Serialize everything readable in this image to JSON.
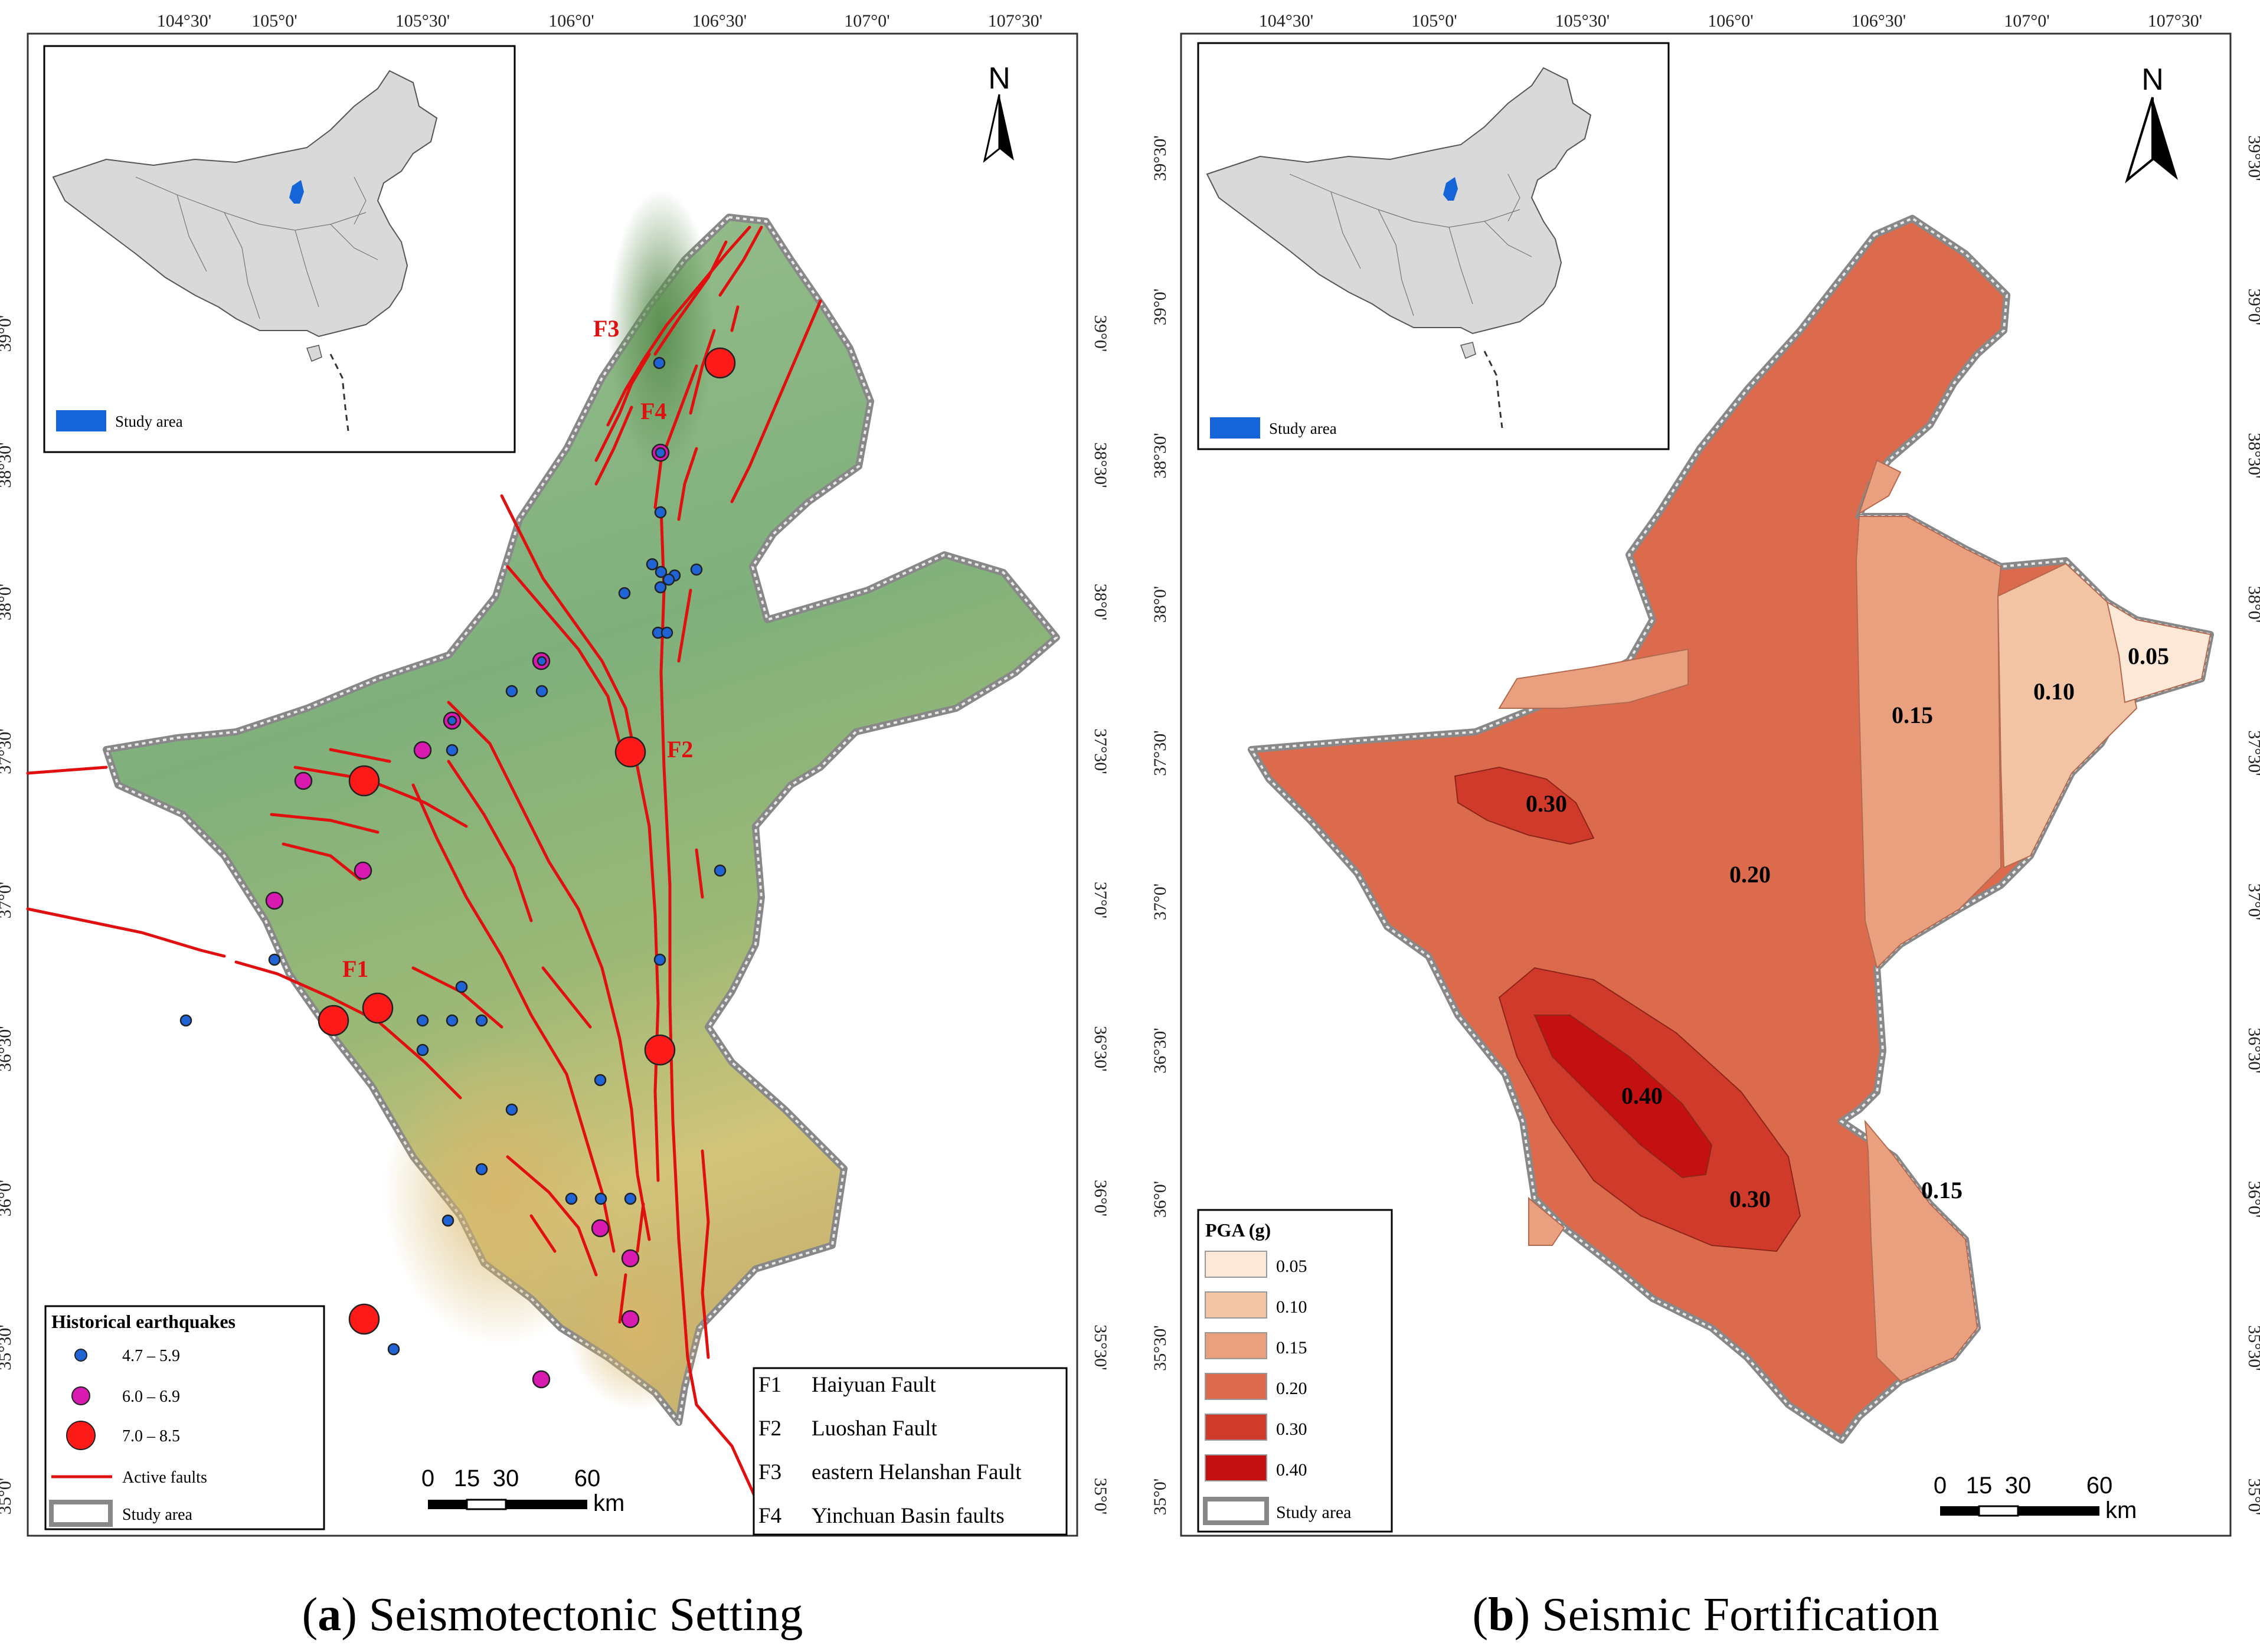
{
  "panel_a": {
    "caption_letter": "(a)",
    "caption_text": "Seismotectonic Setting",
    "top_ticks": [
      "104°30'",
      "105°0'",
      "105°30'",
      "106°0'",
      "106°30'",
      "107°0'",
      "107°30'"
    ],
    "side_ticks": [
      "39°0'",
      "38°30'",
      "38°0'",
      "37°30'",
      "37°0'",
      "36°30'",
      "36°0'",
      "35°30'",
      "35°0'"
    ],
    "north": "N",
    "inset_legend": "Study area",
    "fault_labels": {
      "F1": "F1",
      "F2": "F2",
      "F3": "F3",
      "F4": "F4"
    },
    "legend": {
      "title": "Historical earthquakes",
      "items": [
        {
          "label": "4.7 – 5.9",
          "color": "#1f63d4"
        },
        {
          "label": "6.0 – 6.9",
          "color": "#d81ab0"
        },
        {
          "label": "7.0 – 8.5",
          "color": "#ff1a1a"
        },
        {
          "label": "Active faults",
          "color": "#e01010"
        },
        {
          "label": "Study area"
        }
      ]
    },
    "fault_table": [
      {
        "code": "F1",
        "name": "Haiyuan Fault"
      },
      {
        "code": "F2",
        "name": "Luoshan Fault"
      },
      {
        "code": "F3",
        "name": "eastern Helanshan Fault"
      },
      {
        "code": "F4",
        "name": "Yinchuan Basin faults"
      }
    ],
    "scale": {
      "ticks": [
        "0",
        "15",
        "30",
        "60"
      ],
      "unit": "km"
    }
  },
  "panel_b": {
    "caption_letter": "(b)",
    "caption_text": "Seismic Fortification",
    "top_ticks": [
      "104°30'",
      "105°0'",
      "105°30'",
      "106°0'",
      "106°30'",
      "107°0'",
      "107°30'"
    ],
    "side_ticks": [
      "39°30'",
      "39°0'",
      "38°30'",
      "38°0'",
      "37°30'",
      "37°0'",
      "36°30'",
      "36°0'",
      "35°30'",
      "35°0'"
    ],
    "north": "N",
    "inset_legend": "Study area",
    "zone_labels": [
      "0.05",
      "0.10",
      "0.15",
      "0.15",
      "0.20",
      "0.30",
      "0.30",
      "0.40"
    ],
    "legend": {
      "title": "PGA (g)",
      "items": [
        {
          "label": "0.05",
          "color": "#fce8d6"
        },
        {
          "label": "0.10",
          "color": "#f3c4a4"
        },
        {
          "label": "0.15",
          "color": "#e9a07e"
        },
        {
          "label": "0.20",
          "color": "#dc6b4e"
        },
        {
          "label": "0.30",
          "color": "#d03a2b"
        },
        {
          "label": "0.40",
          "color": "#c41010"
        }
      ],
      "boundary": "Study area"
    },
    "scale": {
      "ticks": [
        "0",
        "15",
        "30",
        "60"
      ],
      "unit": "km"
    }
  }
}
